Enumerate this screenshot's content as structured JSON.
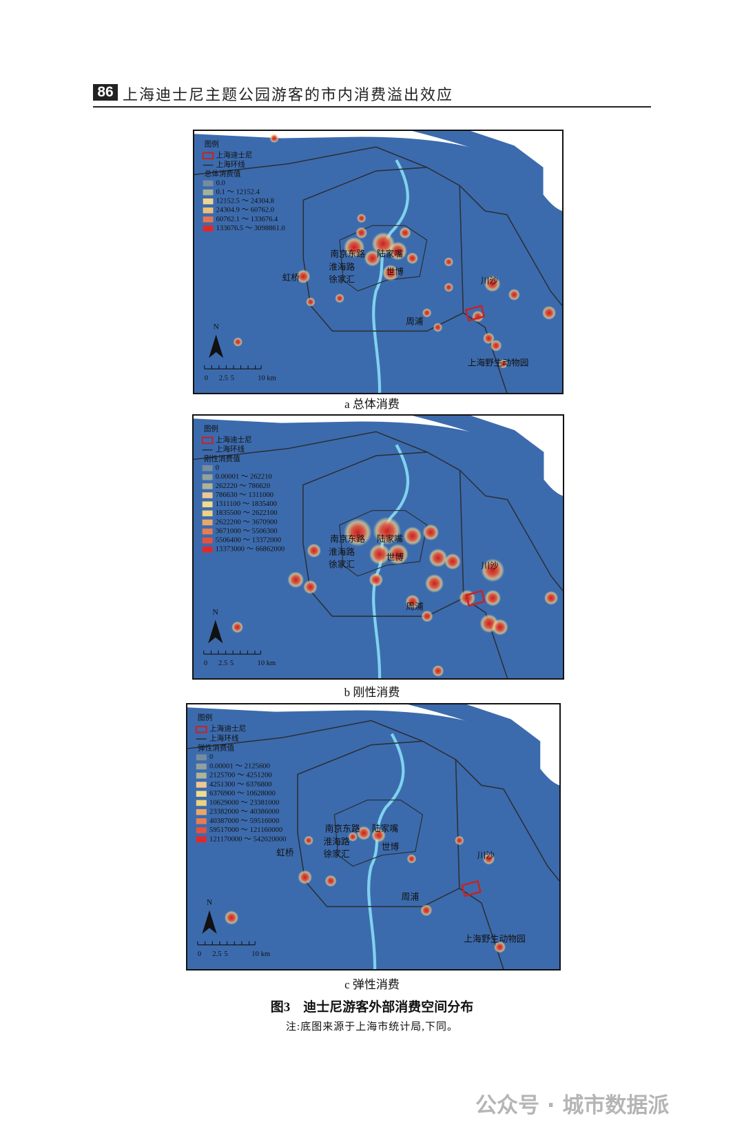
{
  "header": {
    "page_number": "86",
    "title": "上海迪士尼主题公园游客的市内消费溢出效应"
  },
  "maps": [
    {
      "legend_title": "图例",
      "disney": "上海迪士尼",
      "ring": "上海环线",
      "value_title": "总体消费值",
      "classes": [
        "0.0",
        "0.1 ～ 12152.4",
        "12152.5 ～ 24304.8",
        "24304.9 ～ 60762.0",
        "60762.1 ～ 133676.4",
        "133676.5 ～ 3098861.0"
      ],
      "places": [
        "南京东路",
        "陆家嘴",
        "淮海路",
        "徐家汇",
        "世博",
        "虹桥",
        "川沙",
        "周浦",
        "上海野生动物园"
      ],
      "north": "N",
      "scale": [
        "0",
        "2.5",
        "5",
        "10 km"
      ],
      "caption": "a  总体消费"
    },
    {
      "legend_title": "图例",
      "disney": "上海迪士尼",
      "ring": "上海环线",
      "value_title": "刚性消费值",
      "classes": [
        "0",
        "0.00001 ～ 262210",
        "262220 ～ 786620",
        "786630 ～ 1311000",
        "1311100 ～ 1835400",
        "1835500 ～ 2622100",
        "2622200 ～ 3670900",
        "3671000 ～ 5506300",
        "5506400 ～ 13372000",
        "13373000 ～ 66862000"
      ],
      "places": [
        "南京东路",
        "陆家嘴",
        "淮海路",
        "徐家汇",
        "世博",
        "川沙",
        "周浦"
      ],
      "north": "N",
      "scale": [
        "0",
        "2.5",
        "5",
        "10 km"
      ],
      "caption": "b  刚性消费"
    },
    {
      "legend_title": "图例",
      "disney": "上海迪士尼",
      "ring": "上海环线",
      "value_title": "弹性消费值",
      "classes": [
        "0",
        "0.00001 ～ 2125600",
        "2125700 ～ 4251200",
        "4251300 ～ 6376800",
        "6376900 ～ 10628000",
        "10629000 ～ 23381000",
        "23382000 ～ 40386000",
        "40387000 ～ 59516000",
        "59517000 ～ 121160000",
        "121170000 ～ 542020000"
      ],
      "places": [
        "南京东路",
        "陆家嘴",
        "淮海路",
        "徐家汇",
        "世博",
        "虹桥",
        "川沙",
        "周浦",
        "上海野生动物园"
      ],
      "north": "N",
      "scale": [
        "0",
        "2.5",
        "5",
        "10 km"
      ],
      "caption": "c  弹性消费"
    }
  ],
  "figure_title": "图3　迪士尼游客外部消费空间分布",
  "note": "注:底图来源于上海市统计局,下同。",
  "watermark": "公众号 · 城市数据派"
}
